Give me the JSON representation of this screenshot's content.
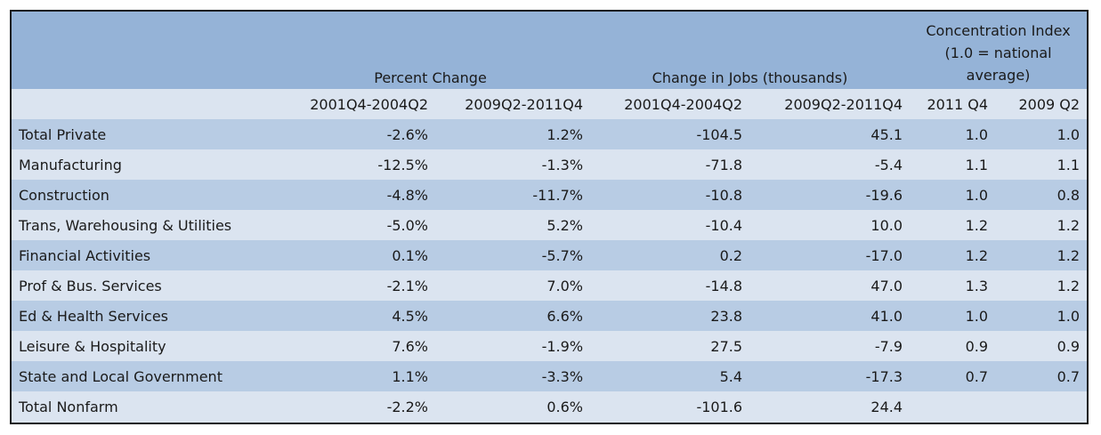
{
  "header": {
    "group_percent": "Percent Change",
    "group_jobs": "Change in Jobs (thousands)",
    "group_concentration_lines": [
      "Concentration Index",
      "(1.0 = national",
      "average)"
    ],
    "periods": [
      "2001Q4-2004Q2",
      "2009Q2-2011Q4",
      "2001Q4-2004Q2",
      "2009Q2-2011Q4",
      "2011 Q4",
      "2009 Q2"
    ]
  },
  "rows": [
    {
      "label": "Total Private",
      "pct_a": "-2.6%",
      "pct_b": "1.2%",
      "jobs_a": "-104.5",
      "jobs_b": "45.1",
      "ci_2011": "1.0",
      "ci_2009": "1.0"
    },
    {
      "label": "Manufacturing",
      "pct_a": "-12.5%",
      "pct_b": "-1.3%",
      "jobs_a": "-71.8",
      "jobs_b": "-5.4",
      "ci_2011": "1.1",
      "ci_2009": "1.1"
    },
    {
      "label": "Construction",
      "pct_a": "-4.8%",
      "pct_b": "-11.7%",
      "jobs_a": "-10.8",
      "jobs_b": "-19.6",
      "ci_2011": "1.0",
      "ci_2009": "0.8"
    },
    {
      "label": "Trans, Warehousing & Utilities",
      "pct_a": "-5.0%",
      "pct_b": "5.2%",
      "jobs_a": "-10.4",
      "jobs_b": "10.0",
      "ci_2011": "1.2",
      "ci_2009": "1.2"
    },
    {
      "label": "Financial Activities",
      "pct_a": "0.1%",
      "pct_b": "-5.7%",
      "jobs_a": "0.2",
      "jobs_b": "-17.0",
      "ci_2011": "1.2",
      "ci_2009": "1.2"
    },
    {
      "label": "Prof & Bus. Services",
      "pct_a": "-2.1%",
      "pct_b": "7.0%",
      "jobs_a": "-14.8",
      "jobs_b": "47.0",
      "ci_2011": "1.3",
      "ci_2009": "1.2"
    },
    {
      "label": "Ed & Health Services",
      "pct_a": "4.5%",
      "pct_b": "6.6%",
      "jobs_a": "23.8",
      "jobs_b": "41.0",
      "ci_2011": "1.0",
      "ci_2009": "1.0"
    },
    {
      "label": "Leisure & Hospitality",
      "pct_a": "7.6%",
      "pct_b": "-1.9%",
      "jobs_a": "27.5",
      "jobs_b": "-7.9",
      "ci_2011": "0.9",
      "ci_2009": "0.9"
    },
    {
      "label": "State and Local Government",
      "pct_a": "1.1%",
      "pct_b": "-3.3%",
      "jobs_a": "5.4",
      "jobs_b": "-17.3",
      "ci_2011": "0.7",
      "ci_2009": "0.7"
    },
    {
      "label": "Total Nonfarm",
      "pct_a": "-2.2%",
      "pct_b": "0.6%",
      "jobs_a": "-101.6",
      "jobs_b": "24.4",
      "ci_2011": "",
      "ci_2009": ""
    }
  ]
}
